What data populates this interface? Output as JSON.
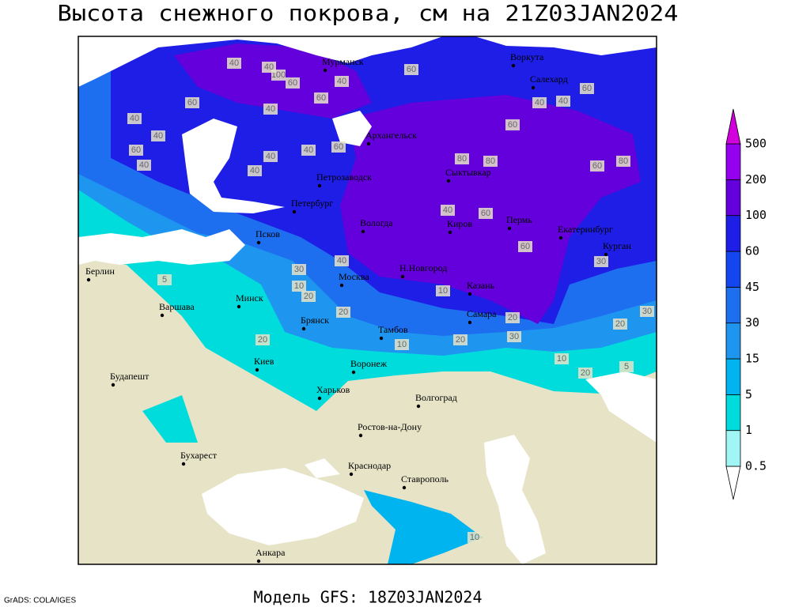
{
  "title": "Высота снежного покрова, см на 21Z03JAN2024",
  "footer": "Модель GFS: 18Z03JAN2024",
  "credit": "GrADS: COLA/IGES",
  "cities": [
    "Мурманск",
    "Воркута",
    "Салехард",
    "Архангельск",
    "Петрозаводск",
    "Сыктывкар",
    "Петербург",
    "Вологда",
    "Киров",
    "Пермь",
    "Екатеринбург",
    "Курган",
    "Псков",
    "Н.Новгород",
    "Казань",
    "Москва",
    "Берлин",
    "Варшава",
    "Минск",
    "Брянск",
    "Тамбов",
    "Самара",
    "Киев",
    "Воронеж",
    "Будапешт",
    "Харьков",
    "Волгоград",
    "Ростов-на-Дону",
    "Бухарест",
    "Краснодар",
    "Ставрополь",
    "Анкара"
  ],
  "contour_labels": [
    40,
    100,
    60,
    40,
    60,
    40,
    60,
    40,
    40,
    60,
    40,
    40,
    40,
    40,
    60,
    60,
    80,
    80,
    60,
    80,
    60,
    40,
    40,
    60,
    60,
    60,
    40,
    30,
    40,
    10,
    20,
    20,
    20,
    30,
    20,
    10,
    20,
    20,
    10,
    20,
    5,
    30,
    5,
    40,
    30,
    10,
    10
  ],
  "legend": {
    "levels": [
      0.5,
      1,
      5,
      15,
      30,
      45,
      60,
      100,
      200,
      500
    ],
    "colors": [
      "#ffffff",
      "#a0f5f5",
      "#00dcdc",
      "#00b4f0",
      "#1e96f0",
      "#1e6ef0",
      "#1446f0",
      "#1e1ee6",
      "#6400dc",
      "#9600f0",
      "#d200dc"
    ]
  }
}
